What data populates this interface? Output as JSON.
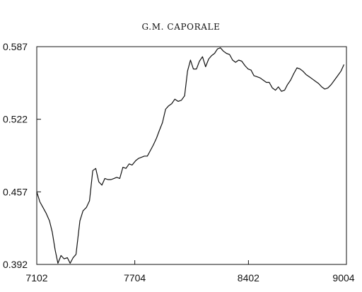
{
  "page": {
    "header_text": "G.M. CAPORALE"
  },
  "chart_data": {
    "type": "line",
    "title": "",
    "xlabel": "",
    "ylabel": "",
    "xlim": [
      7102,
      9004
    ],
    "ylim": [
      0.392,
      0.587
    ],
    "x_ticks": [
      "7102",
      "7704",
      "8402",
      "9004"
    ],
    "x_tick_values": [
      7102,
      7704,
      8402,
      9004
    ],
    "y_ticks": [
      "0.587",
      "0.522",
      "0.457",
      "0.392"
    ],
    "y_tick_values": [
      0.587,
      0.522,
      0.457,
      0.392
    ],
    "grid": false,
    "legend": "none",
    "line_color": "#111111",
    "series": [
      {
        "x": [
          7102,
          7121,
          7140,
          7159,
          7180,
          7197,
          7215,
          7232,
          7251,
          7270,
          7290,
          7307,
          7325,
          7343,
          7367,
          7386,
          7407,
          7426,
          7446,
          7464,
          7483,
          7502,
          7520,
          7539,
          7558,
          7576,
          7593,
          7612,
          7631,
          7650,
          7669,
          7688,
          7710,
          7728,
          7745,
          7763,
          7781,
          7800,
          7818,
          7837,
          7855,
          7874,
          7893,
          7912,
          7931,
          7950,
          7970,
          7990,
          8010,
          8028,
          8046,
          8064,
          8083,
          8101,
          8120,
          8139,
          8158,
          8176,
          8194,
          8212,
          8230,
          8248,
          8267,
          8286,
          8305,
          8323,
          8342,
          8361,
          8381,
          8400,
          8418,
          8436,
          8455,
          8474,
          8493,
          8512,
          8530,
          8549,
          8568,
          8586,
          8605,
          8624,
          8642,
          8661,
          8681,
          8700,
          8719,
          8737,
          8756,
          8776,
          8795,
          8814,
          8833,
          8852,
          8871,
          8890,
          8910,
          8930,
          8950,
          8970,
          8989
        ],
        "y": [
          0.457,
          0.448,
          0.443,
          0.438,
          0.431,
          0.421,
          0.405,
          0.393,
          0.4,
          0.397,
          0.398,
          0.393,
          0.398,
          0.401,
          0.431,
          0.44,
          0.443,
          0.449,
          0.476,
          0.478,
          0.466,
          0.463,
          0.469,
          0.468,
          0.468,
          0.469,
          0.47,
          0.469,
          0.479,
          0.478,
          0.482,
          0.481,
          0.485,
          0.487,
          0.488,
          0.489,
          0.489,
          0.494,
          0.499,
          0.505,
          0.512,
          0.519,
          0.531,
          0.534,
          0.536,
          0.54,
          0.538,
          0.539,
          0.543,
          0.565,
          0.575,
          0.567,
          0.567,
          0.574,
          0.578,
          0.569,
          0.576,
          0.579,
          0.581,
          0.585,
          0.586,
          0.583,
          0.581,
          0.58,
          0.575,
          0.573,
          0.575,
          0.574,
          0.57,
          0.567,
          0.566,
          0.561,
          0.56,
          0.559,
          0.557,
          0.555,
          0.555,
          0.55,
          0.548,
          0.551,
          0.547,
          0.548,
          0.553,
          0.557,
          0.563,
          0.568,
          0.567,
          0.565,
          0.562,
          0.56,
          0.558,
          0.556,
          0.554,
          0.551,
          0.549,
          0.55,
          0.553,
          0.557,
          0.561,
          0.565,
          0.571
        ]
      }
    ]
  }
}
